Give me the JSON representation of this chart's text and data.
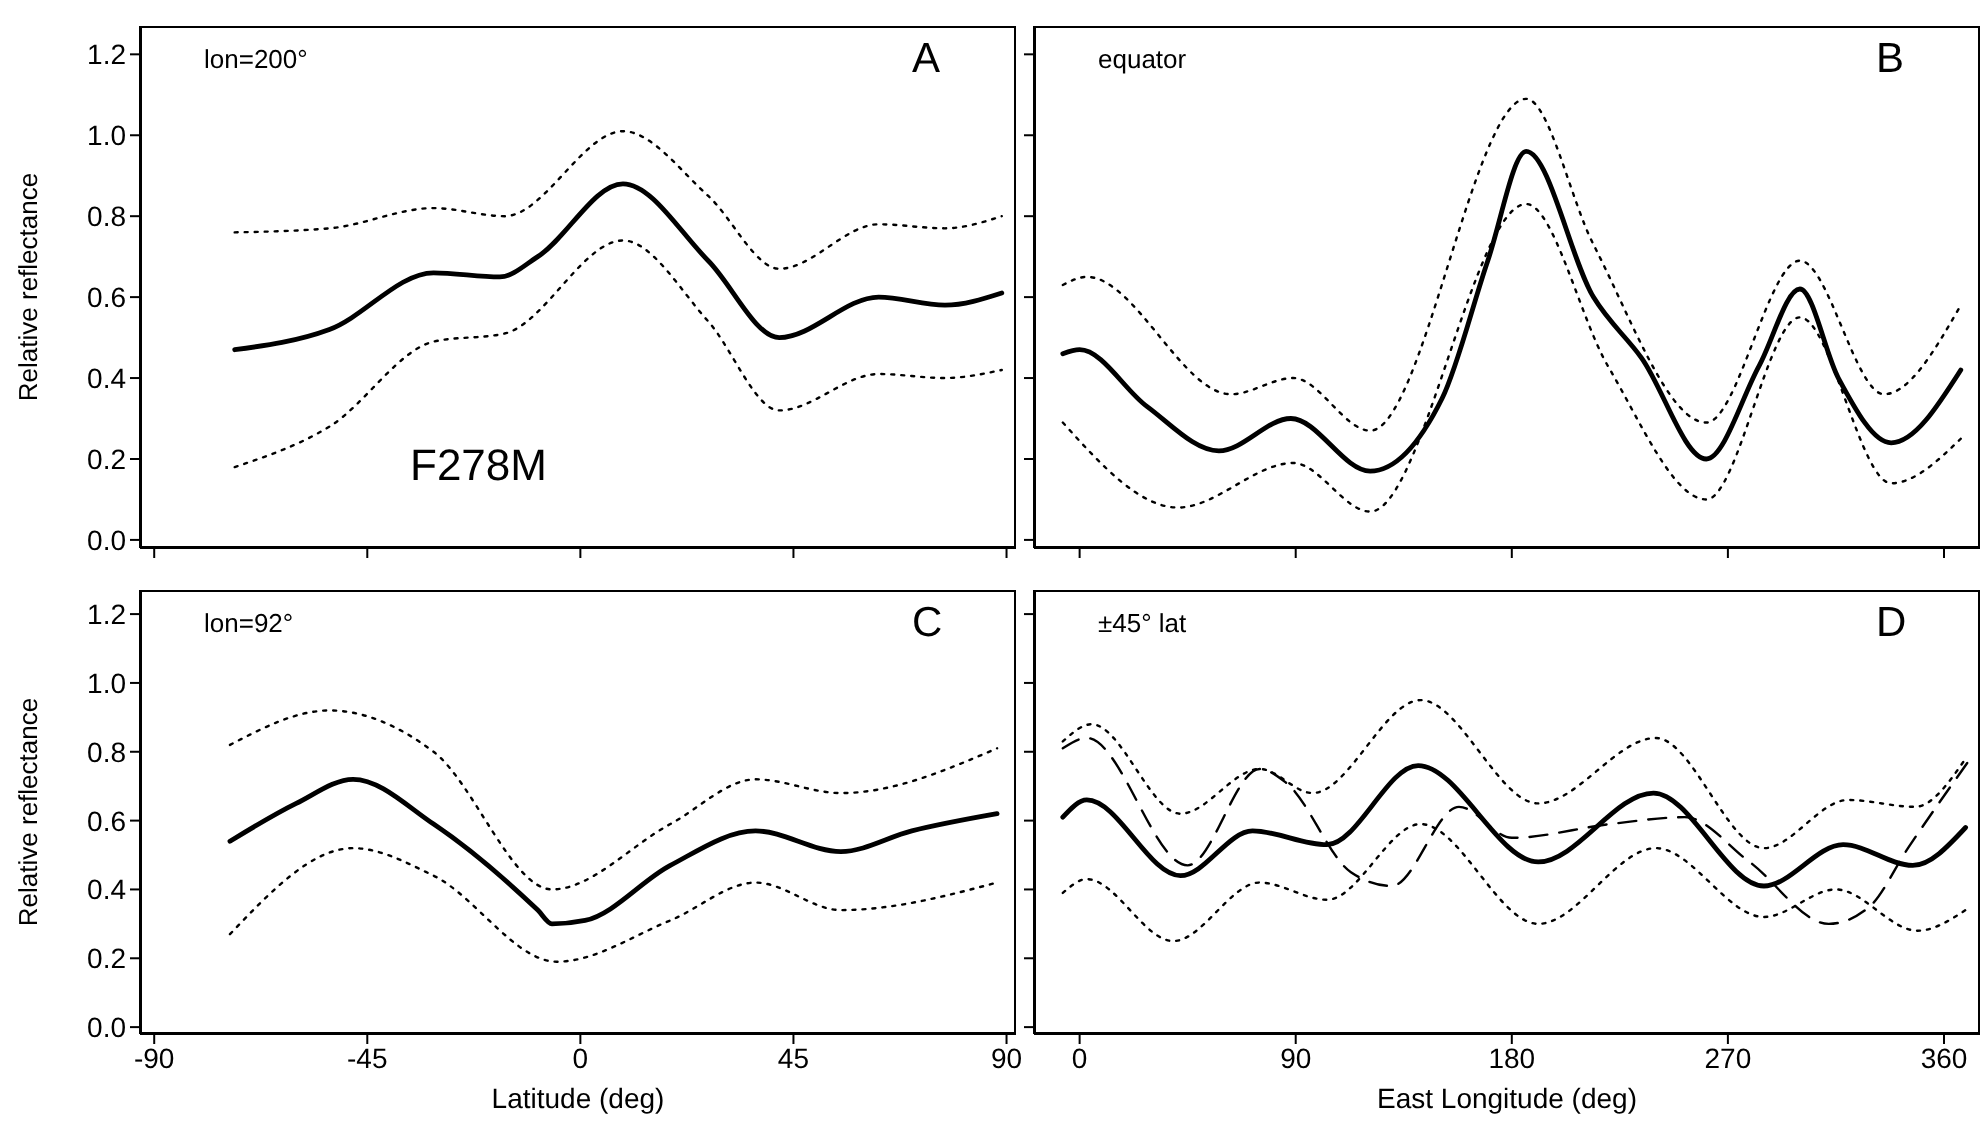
{
  "chart_data": [
    {
      "type": "line",
      "ylabel": "Relative reflectance",
      "xlim": [
        -93,
        92
      ],
      "xticks": [
        -90,
        -45,
        0,
        45,
        90
      ],
      "ylim": [
        -0.02,
        1.27
      ],
      "yticks": [
        {
          "value": 0,
          "label": "0.0"
        },
        {
          "value": 0.2,
          "label": "0.2"
        },
        {
          "value": 0.4,
          "label": "0.4"
        },
        {
          "value": 0.6,
          "label": "0.6"
        },
        {
          "value": 0.8,
          "label": "0.8"
        },
        {
          "value": 1,
          "label": "1.0"
        },
        {
          "value": 1.2,
          "label": "1.2"
        }
      ],
      "tick_labels": "y",
      "marker": "none",
      "annotations": [
        "lon=200°",
        "A",
        "F278M"
      ],
      "series": [
        {
          "color": "#000000",
          "line_style": "solid",
          "x": [
            -73,
            -53,
            -31,
            -17,
            -9,
            9,
            27,
            42,
            63,
            77,
            89
          ],
          "values": [
            0.47,
            0.52,
            0.66,
            0.65,
            0.7,
            0.88,
            0.69,
            0.5,
            0.6,
            0.58,
            0.61
          ]
        },
        {
          "color": "#000000",
          "line_style": "dotted",
          "x": [
            -73,
            -53,
            -31,
            -16,
            9,
            27,
            42,
            63,
            77,
            89
          ],
          "values": [
            0.76,
            0.77,
            0.82,
            0.8,
            1.01,
            0.85,
            0.67,
            0.78,
            0.77,
            0.8
          ]
        },
        {
          "color": "#000000",
          "line_style": "dotted",
          "x": [
            -73,
            -53,
            -31,
            -16,
            9,
            27,
            42,
            63,
            77,
            89
          ],
          "values": [
            0.18,
            0.28,
            0.49,
            0.51,
            0.74,
            0.54,
            0.32,
            0.41,
            0.4,
            0.42
          ]
        }
      ]
    },
    {
      "type": "line",
      "xlim": [
        -19,
        375
      ],
      "xticks": [
        0,
        90,
        180,
        270,
        360
      ],
      "ylim": [
        -0.02,
        1.27
      ],
      "yticks": [
        0,
        0.2,
        0.4,
        0.6,
        0.8,
        1,
        1.2
      ],
      "tick_labels": false,
      "marker": "none",
      "annotations": [
        "equator",
        "B"
      ],
      "series": [
        {
          "color": "#000000",
          "line_style": "solid",
          "x": [
            -7,
            0,
            28,
            58,
            88,
            121,
            151,
            170,
            186,
            214,
            234,
            261,
            283,
            300,
            316,
            338,
            367
          ],
          "values": [
            0.46,
            0.47,
            0.33,
            0.22,
            0.3,
            0.17,
            0.35,
            0.69,
            0.96,
            0.6,
            0.45,
            0.2,
            0.43,
            0.62,
            0.4,
            0.24,
            0.42
          ]
        },
        {
          "color": "#000000",
          "line_style": "dotted",
          "x": [
            -7,
            3,
            63,
            89,
            121,
            186,
            214,
            261,
            300,
            335,
            367
          ],
          "values": [
            0.63,
            0.65,
            0.36,
            0.4,
            0.27,
            1.09,
            0.73,
            0.29,
            0.69,
            0.36,
            0.58
          ]
        },
        {
          "color": "#000000",
          "line_style": "dotted",
          "x": [
            -7,
            41,
            89,
            121,
            186,
            220,
            261,
            300,
            338,
            367
          ],
          "values": [
            0.29,
            0.08,
            0.19,
            0.07,
            0.83,
            0.43,
            0.1,
            0.55,
            0.14,
            0.25
          ]
        }
      ]
    },
    {
      "type": "line",
      "xlabel": "Latitude (deg)",
      "ylabel": "Relative reflectance",
      "xlim": [
        -93,
        92
      ],
      "xticks": [
        -90,
        -45,
        0,
        45,
        90
      ],
      "ylim": [
        -0.02,
        1.27
      ],
      "yticks": [
        {
          "value": 0,
          "label": "0.0"
        },
        {
          "value": 0.2,
          "label": "0.2"
        },
        {
          "value": 0.4,
          "label": "0.4"
        },
        {
          "value": 0.6,
          "label": "0.6"
        },
        {
          "value": 0.8,
          "label": "0.8"
        },
        {
          "value": 1,
          "label": "1.0"
        },
        {
          "value": 1.2,
          "label": "1.2"
        }
      ],
      "marker": "none",
      "annotations": [
        "lon=92°",
        "C"
      ],
      "series": [
        {
          "color": "#000000",
          "line_style": "solid",
          "x": [
            -74,
            -60,
            -48,
            -31,
            -9,
            -6,
            1,
            19,
            37,
            55,
            70,
            88
          ],
          "values": [
            0.54,
            0.65,
            0.72,
            0.59,
            0.34,
            0.3,
            0.31,
            0.47,
            0.57,
            0.51,
            0.57,
            0.62
          ]
        },
        {
          "color": "#000000",
          "line_style": "dotted",
          "x": [
            -74,
            -53,
            -31,
            -6,
            19,
            37,
            55,
            88
          ],
          "values": [
            0.82,
            0.92,
            0.8,
            0.4,
            0.59,
            0.72,
            0.68,
            0.81
          ]
        },
        {
          "color": "#000000",
          "line_style": "dotted",
          "x": [
            -74,
            -48,
            -31,
            -5,
            19,
            37,
            55,
            88
          ],
          "values": [
            0.27,
            0.52,
            0.44,
            0.19,
            0.31,
            0.42,
            0.34,
            0.42
          ]
        }
      ]
    },
    {
      "type": "line",
      "xlabel": "East Longitude (deg)",
      "xlim": [
        -19,
        375
      ],
      "xticks": [
        0,
        90,
        180,
        270,
        360
      ],
      "ylim": [
        -0.02,
        1.27
      ],
      "yticks": [
        0,
        0.2,
        0.4,
        0.6,
        0.8,
        1,
        1.2
      ],
      "tick_labels": "x",
      "marker": "none",
      "annotations": [
        "±45° lat",
        "D"
      ],
      "series": [
        {
          "color": "#000000",
          "line_style": "solid",
          "x": [
            -7,
            3,
            42,
            72,
            103,
            141,
            191,
            239,
            285,
            318,
            347,
            369
          ],
          "values": [
            0.61,
            0.66,
            0.44,
            0.57,
            0.53,
            0.76,
            0.48,
            0.68,
            0.41,
            0.53,
            0.47,
            0.58
          ]
        },
        {
          "color": "#000000",
          "line_style": "dotted",
          "x": [
            -7,
            5,
            42,
            75,
            97,
            142,
            191,
            240,
            285,
            320,
            348,
            369
          ],
          "values": [
            0.83,
            0.88,
            0.62,
            0.75,
            0.68,
            0.95,
            0.65,
            0.84,
            0.52,
            0.66,
            0.64,
            0.78
          ]
        },
        {
          "color": "#000000",
          "line_style": "dotted",
          "x": [
            -7,
            3,
            39,
            75,
            103,
            142,
            191,
            240,
            285,
            315,
            349,
            369
          ],
          "values": [
            0.39,
            0.43,
            0.25,
            0.42,
            0.37,
            0.59,
            0.3,
            0.52,
            0.32,
            0.4,
            0.28,
            0.34
          ]
        },
        {
          "color": "#000000",
          "line_style": "dashed",
          "x": [
            -7,
            3,
            45,
            75,
            86,
            113,
            130,
            158,
            180,
            221,
            252,
            279,
            312,
            329,
            345,
            372
          ],
          "values": [
            0.81,
            0.84,
            0.47,
            0.75,
            0.71,
            0.45,
            0.41,
            0.64,
            0.55,
            0.59,
            0.61,
            0.48,
            0.3,
            0.35,
            0.52,
            0.79
          ]
        }
      ]
    }
  ]
}
